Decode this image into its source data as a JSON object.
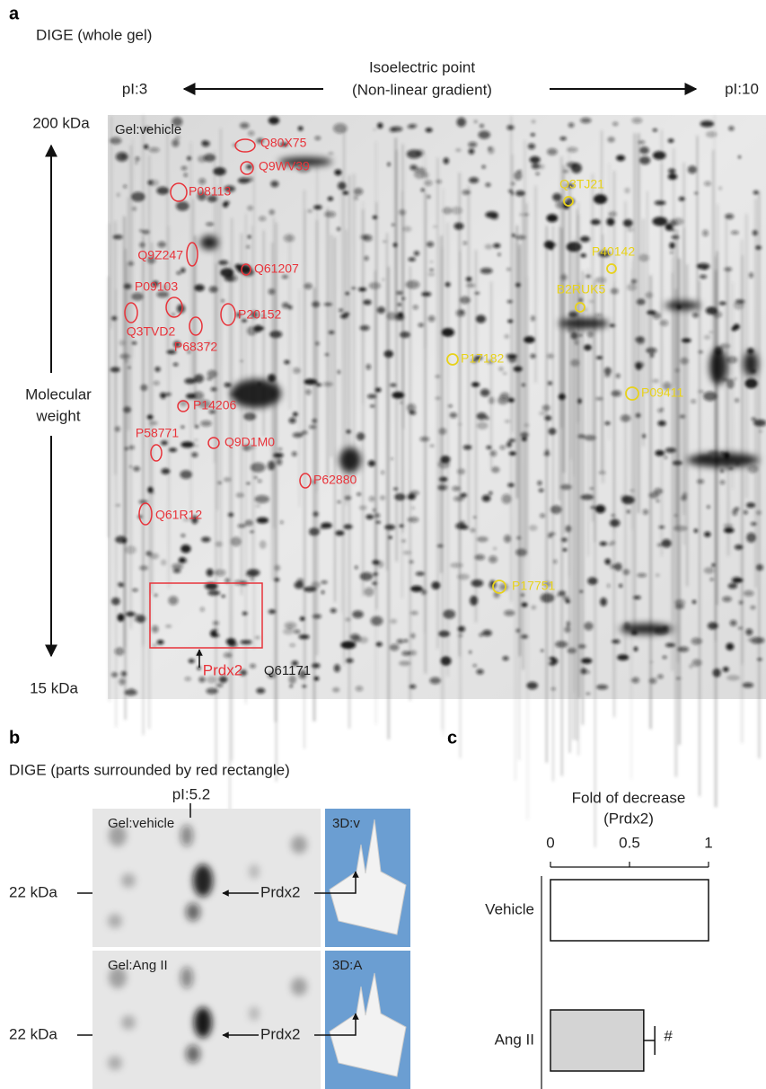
{
  "panel_a": {
    "letter": "a",
    "subtitle": "DIGE (whole gel)",
    "axis_title_1": "Isoelectric point",
    "axis_title_2": "(Non-linear gradient)",
    "pi_left": "pI:3",
    "pi_right": "pI:10",
    "mw_top": "200 kDa",
    "mw_label_1": "Molecular",
    "mw_label_2": "weight",
    "mw_bottom": "15 kDa",
    "gel_label": "Gel:vehicle",
    "red_spots": [
      "Q80X75",
      "Q9WV39",
      "P08113",
      "Q9Z247",
      "Q61207",
      "P09103",
      "Q3TVD2",
      "P20152",
      "P68372",
      "P14206",
      "P58771",
      "Q9D1M0",
      "P62880",
      "Q61R12"
    ],
    "yellow_spots": [
      "Q3TJ21",
      "P40142",
      "B2RUK5",
      "P17182",
      "P09411",
      "P17751"
    ],
    "target_label": "Prdx2",
    "target_id": "Q61171"
  },
  "panel_b": {
    "letter": "b",
    "subtitle": "DIGE (parts surrounded by red rectangle)",
    "pi_label": "pI:5.2",
    "gel_top_label": "Gel:vehicle",
    "view_top_label": "3D:v",
    "gel_bottom_label": "Gel:Ang II",
    "view_bottom_label": "3D:A",
    "mw_top": "22 kDa",
    "mw_bottom": "22 kDa",
    "arrow_top": "Prdx2",
    "arrow_bottom": "Prdx2"
  },
  "panel_c": {
    "letter": "c"
  },
  "chart_data": {
    "type": "bar",
    "orientation": "horizontal",
    "title": "Fold of decrease",
    "subtitle": "(Prdx2)",
    "categories": [
      "Vehicle",
      "Ang II"
    ],
    "values": [
      1,
      0.59
    ],
    "errors": [
      null,
      0.07
    ],
    "error_labels": [
      null,
      "#"
    ],
    "colors": [
      "#ffffff",
      "#d4d4d4"
    ],
    "xlim": [
      0,
      1
    ],
    "xticks": [
      0,
      0.5,
      1
    ]
  }
}
